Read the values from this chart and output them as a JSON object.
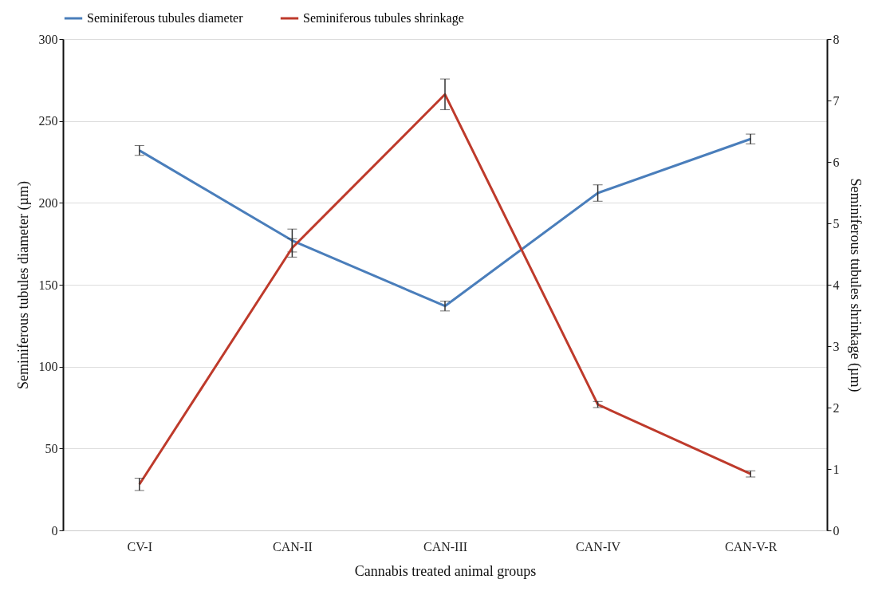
{
  "chart_data": {
    "type": "line",
    "xlabel": "Cannabis treated animal groups",
    "ylabel": "Seminiferous tubules diameter (µm)",
    "y2label": "Seminiferous tubules shrinkage (µm)",
    "categories": [
      "CV-I",
      "CAN-II",
      "CAN-III",
      "CAN-IV",
      "CAN-V-R"
    ],
    "series": [
      {
        "name": "Seminiferous tubules diameter",
        "color": "#4a7ebb",
        "values": [
          232,
          177,
          137,
          206,
          239
        ],
        "errors": [
          3,
          7,
          3,
          5,
          3
        ]
      },
      {
        "name": "Seminiferous tubules shrinkage",
        "color": "#be3a2b",
        "axis": "y2",
        "values": [
          0.75,
          4.6,
          7.1,
          2.05,
          0.92
        ],
        "errors": [
          0.1,
          0.15,
          0.25,
          0.05,
          0.05
        ]
      }
    ],
    "ylim": [
      0,
      300
    ],
    "yticks": [
      0,
      50,
      100,
      150,
      200,
      250,
      300
    ],
    "y2lim": [
      0,
      8
    ],
    "y2ticks": [
      0,
      1,
      2,
      3,
      4,
      5,
      6,
      7,
      8
    ],
    "grid": "y",
    "legend": "top",
    "marker": "none",
    "line_style": "solid"
  }
}
